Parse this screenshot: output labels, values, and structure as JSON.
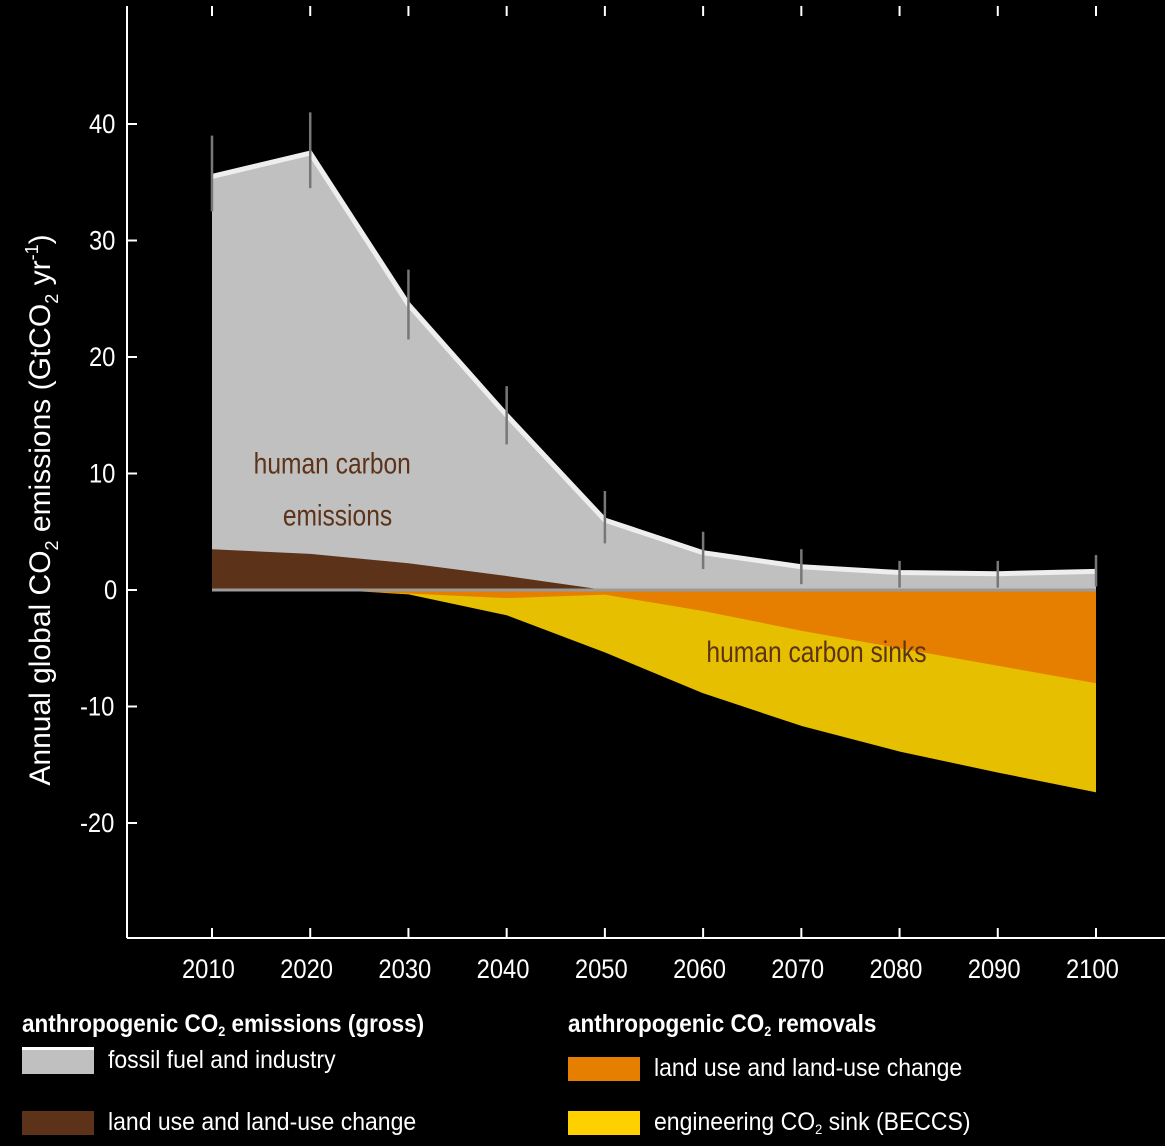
{
  "chart_data": {
    "type": "area",
    "title": "",
    "xlabel": "",
    "ylabel": {
      "prefix": "Annual global CO",
      "sub": "2",
      "mid": " emissions (GtCO",
      "sub2": "2",
      "unit": " yr",
      "sup": "-1",
      "close": ")"
    },
    "x": [
      2010,
      2020,
      2030,
      2040,
      2050,
      2060,
      2070,
      2080,
      2090,
      2100
    ],
    "ylim": [
      -30,
      50
    ],
    "yticks": [
      -20,
      -10,
      0,
      10,
      20,
      30,
      40
    ],
    "ytick_labels": [
      "-20",
      "-10",
      "0",
      "10",
      "20",
      "30",
      "40"
    ],
    "xtick_labels": [
      "2010",
      "2020",
      "2030",
      "2040",
      "2050",
      "2060",
      "2070",
      "2080",
      "2090",
      "2100"
    ],
    "series": [
      {
        "key": "luc_emissions",
        "values": [
          3.5,
          3.1,
          2.3,
          1.2,
          0,
          0,
          0,
          0,
          0,
          0
        ],
        "color": "#5c3318"
      },
      {
        "key": "fossil_total",
        "values": [
          35.5,
          37.5,
          24.5,
          15.0,
          6.0,
          3.2,
          2.0,
          1.5,
          1.4,
          1.6
        ],
        "color": "#c0c0c0",
        "edge": "#eeeeee"
      },
      {
        "key": "luc_removals",
        "values": [
          0,
          0,
          -0.3,
          -0.7,
          -0.4,
          -1.8,
          -3.5,
          -5.0,
          -6.5,
          -8.0
        ],
        "color": "#e67e00"
      },
      {
        "key": "beccs_total",
        "values": [
          0,
          0,
          -0.5,
          -2.3,
          -5.5,
          -9.0,
          -11.8,
          -14.0,
          -15.8,
          -17.5
        ],
        "color": "#e6bf00"
      }
    ],
    "error_bars": {
      "x": [
        2010,
        2020,
        2030,
        2040,
        2050,
        2060,
        2070,
        2080,
        2090,
        2100
      ],
      "low": [
        32.5,
        34.5,
        21.5,
        12.5,
        4.0,
        1.8,
        0.5,
        0.2,
        0.2,
        0.3
      ],
      "high": [
        39,
        41,
        27.5,
        17.5,
        8.5,
        5.0,
        3.5,
        2.5,
        2.5,
        3.0
      ],
      "color": "#777777"
    },
    "annotations": [
      {
        "lines": [
          "human carbon",
          "emissions"
        ],
        "x": 2024,
        "y": 10,
        "color": "#5c3318"
      },
      {
        "lines": [
          "human carbon sinks"
        ],
        "x": 2074,
        "y": -6.2,
        "color": "#5c3318"
      }
    ]
  },
  "legend": {
    "emissions": {
      "head_prefix": "anthropogenic CO",
      "head_sub": "2",
      "head_suffix": " emissions (gross)",
      "items": [
        {
          "label": "fossil fuel and industry",
          "color": "#c0c0c0"
        },
        {
          "label": "land use and land-use change",
          "color": "#5c3318"
        }
      ]
    },
    "removals": {
      "head_prefix": "anthropogenic CO",
      "head_sub": "2",
      "head_suffix": " removals",
      "items": [
        {
          "label": "land use and land-use change",
          "color": "#e67e00"
        },
        {
          "label_prefix": "engineering CO",
          "label_sub": "2",
          "label_suffix": " sink (BECCS)",
          "color": "#ffd000"
        }
      ]
    }
  }
}
